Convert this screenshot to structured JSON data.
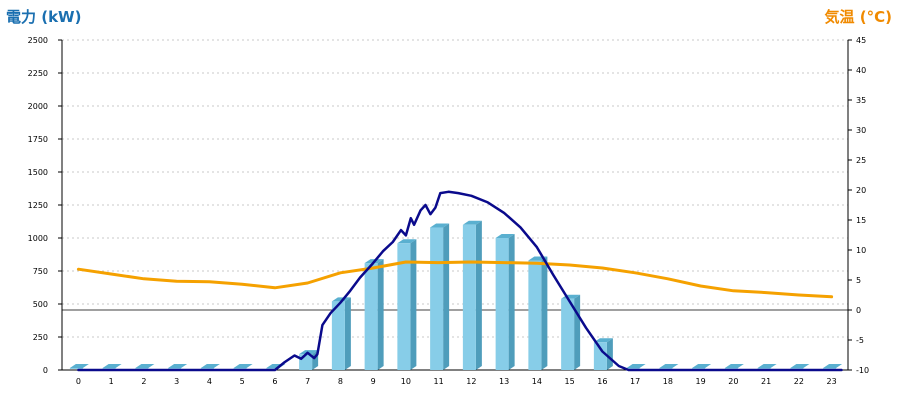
{
  "chart_data": {
    "type": "bar",
    "left_axis_title": "電力 (kW)",
    "right_axis_title": "気温 (°C)",
    "colors": {
      "left_title": "#1a6fb0",
      "right_title": "#f08a00",
      "bar_front": "#87cde8",
      "bar_side": "#4f9dbb",
      "bar_top": "#5ab0d0",
      "power_line": "#0a0a8c",
      "temp_line": "#f5a100",
      "grid": "#b8b8b8"
    },
    "left_ticks": [
      0,
      250,
      500,
      750,
      1000,
      1250,
      1500,
      1750,
      2000,
      2250,
      2500
    ],
    "right_ticks": [
      -10,
      -5,
      0,
      5,
      10,
      15,
      20,
      25,
      30,
      35,
      40,
      45
    ],
    "ylim_left": [
      0,
      2500
    ],
    "ylim_right": [
      -10,
      45
    ],
    "categories": [
      "0",
      "1",
      "2",
      "3",
      "4",
      "5",
      "6",
      "7",
      "8",
      "9",
      "10",
      "11",
      "12",
      "13",
      "14",
      "15",
      "16",
      "17",
      "18",
      "19",
      "20",
      "21",
      "22",
      "23"
    ],
    "bars": [
      0,
      0,
      0,
      0,
      0,
      0,
      0,
      120,
      520,
      810,
      960,
      1080,
      1100,
      1000,
      830,
      540,
      210,
      0,
      0,
      0,
      0,
      0,
      0,
      0
    ],
    "power_line": [
      [
        0,
        0
      ],
      [
        6,
        0
      ],
      [
        6.3,
        60
      ],
      [
        6.6,
        110
      ],
      [
        6.8,
        85
      ],
      [
        7.0,
        130
      ],
      [
        7.2,
        90
      ],
      [
        7.3,
        120
      ],
      [
        7.45,
        340
      ],
      [
        7.7,
        430
      ],
      [
        8.0,
        510
      ],
      [
        8.3,
        600
      ],
      [
        8.6,
        700
      ],
      [
        9.0,
        810
      ],
      [
        9.3,
        900
      ],
      [
        9.6,
        970
      ],
      [
        9.85,
        1060
      ],
      [
        10.0,
        1020
      ],
      [
        10.15,
        1150
      ],
      [
        10.25,
        1100
      ],
      [
        10.45,
        1210
      ],
      [
        10.6,
        1250
      ],
      [
        10.75,
        1180
      ],
      [
        10.9,
        1230
      ],
      [
        11.05,
        1340
      ],
      [
        11.3,
        1350
      ],
      [
        11.6,
        1340
      ],
      [
        12.0,
        1320
      ],
      [
        12.5,
        1270
      ],
      [
        13.0,
        1190
      ],
      [
        13.5,
        1080
      ],
      [
        14.0,
        930
      ],
      [
        14.5,
        720
      ],
      [
        15.0,
        520
      ],
      [
        15.5,
        320
      ],
      [
        16.0,
        140
      ],
      [
        16.5,
        30
      ],
      [
        16.8,
        0
      ],
      [
        23.3,
        0
      ]
    ],
    "temperature_line": [
      [
        0,
        6.8
      ],
      [
        1,
        6.0
      ],
      [
        2,
        5.2
      ],
      [
        3,
        4.8
      ],
      [
        4,
        4.7
      ],
      [
        5,
        4.3
      ],
      [
        6,
        3.7
      ],
      [
        7,
        4.5
      ],
      [
        8,
        6.2
      ],
      [
        9,
        7.0
      ],
      [
        10,
        8.0
      ],
      [
        11,
        7.9
      ],
      [
        12,
        8.0
      ],
      [
        13,
        7.9
      ],
      [
        14,
        7.8
      ],
      [
        15,
        7.5
      ],
      [
        16,
        7.0
      ],
      [
        17,
        6.2
      ],
      [
        18,
        5.2
      ],
      [
        19,
        4.0
      ],
      [
        20,
        3.2
      ],
      [
        21,
        2.9
      ],
      [
        22,
        2.5
      ],
      [
        23,
        2.2
      ]
    ]
  }
}
